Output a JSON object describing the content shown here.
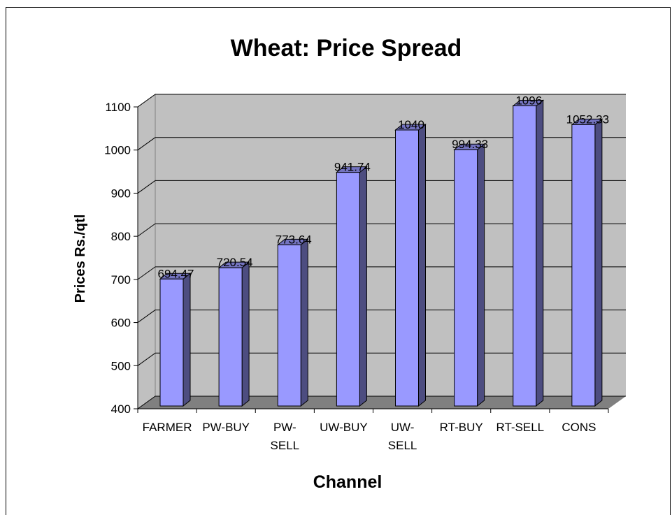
{
  "chart_data": {
    "type": "bar3d",
    "title": "Wheat: Price Spread",
    "x_label": "Channel",
    "y_label": "Prices Rs./qtl",
    "categories": [
      "FARMER",
      "PW-BUY",
      "PW-SELL",
      "UW-BUY",
      "UW-SELL",
      "RT-BUY",
      "RT-SELL",
      "CONS"
    ],
    "values": [
      694.47,
      720.54,
      773.64,
      941.74,
      1040,
      994.33,
      1096,
      1052.33
    ],
    "color": "#9999ff",
    "ylim": [
      400,
      1100
    ],
    "yticks": [
      400,
      500,
      600,
      700,
      800,
      900,
      1000,
      1100
    ],
    "grid": true
  }
}
